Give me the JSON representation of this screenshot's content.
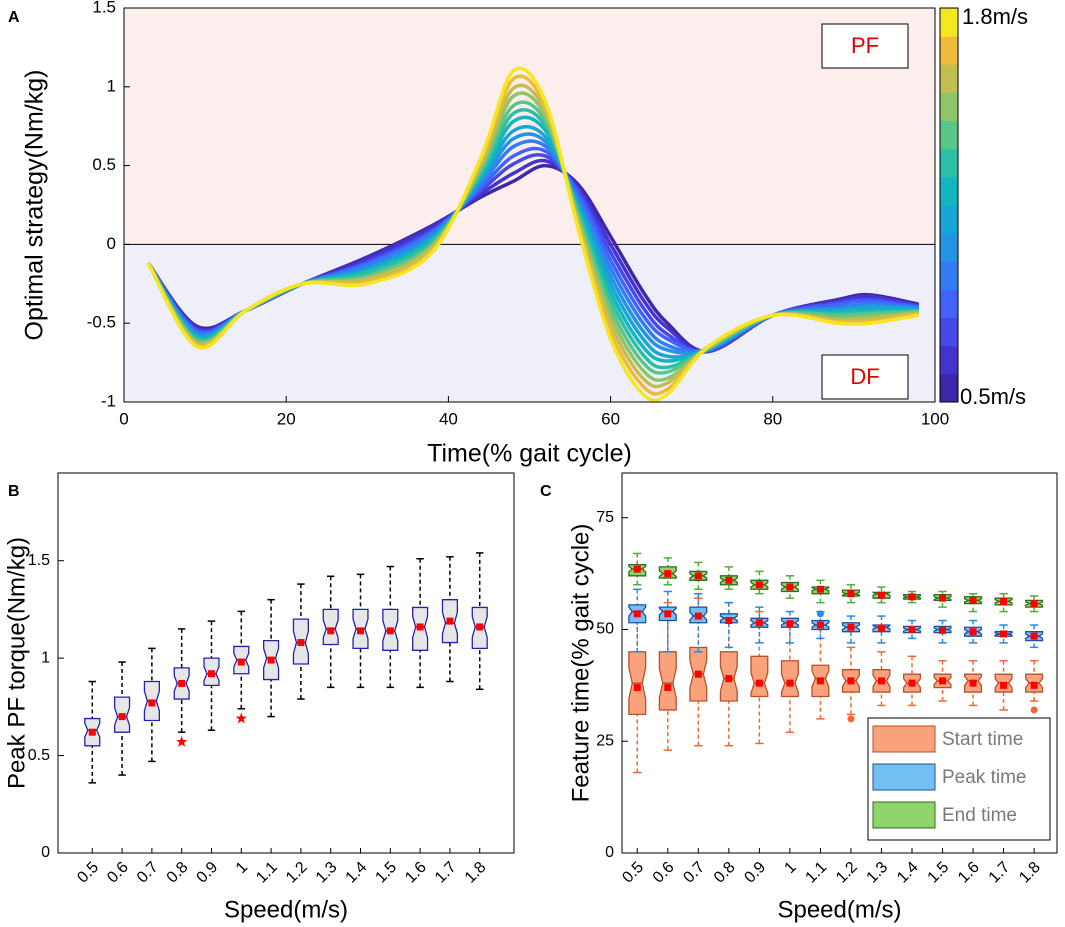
{
  "chart_data": [
    {
      "type": "line",
      "panel_label": "A",
      "xlabel": "Time(% gait cycle)",
      "ylabel": "Optimal strategy(Nm/kg)",
      "xlim": [
        0,
        100
      ],
      "xticks": [
        0,
        20,
        40,
        60,
        80,
        100
      ],
      "ylim": [
        -1,
        1.5
      ],
      "yticks": [
        -1,
        -0.5,
        0,
        0.5,
        1,
        1.5
      ],
      "annotations": [
        "PF",
        "DF"
      ],
      "colorbar_top_label": "1.8m/s",
      "colorbar_bottom_label": "0.5m/s",
      "x": [
        3,
        9,
        15,
        22,
        30,
        38,
        44,
        48,
        52,
        56,
        60,
        64,
        67,
        72,
        80,
        88,
        92,
        98
      ],
      "series": [
        {
          "color": "#3e26a8",
          "values": [
            -0.12,
            -0.52,
            -0.42,
            -0.25,
            -0.08,
            0.12,
            0.3,
            0.4,
            0.5,
            0.38,
            0.05,
            -0.3,
            -0.5,
            -0.68,
            -0.45,
            -0.35,
            -0.32,
            -0.38
          ]
        },
        {
          "color": "#4433cc",
          "values": [
            -0.12,
            -0.53,
            -0.42,
            -0.25,
            -0.09,
            0.11,
            0.32,
            0.45,
            0.53,
            0.36,
            0.0,
            -0.35,
            -0.53,
            -0.68,
            -0.45,
            -0.36,
            -0.33,
            -0.39
          ]
        },
        {
          "color": "#4748e8",
          "values": [
            -0.12,
            -0.54,
            -0.42,
            -0.25,
            -0.11,
            0.09,
            0.34,
            0.51,
            0.56,
            0.34,
            -0.05,
            -0.4,
            -0.57,
            -0.68,
            -0.45,
            -0.37,
            -0.35,
            -0.39
          ]
        },
        {
          "color": "#4362fb",
          "values": [
            -0.12,
            -0.55,
            -0.42,
            -0.25,
            -0.12,
            0.08,
            0.36,
            0.56,
            0.59,
            0.32,
            -0.1,
            -0.45,
            -0.6,
            -0.67,
            -0.45,
            -0.38,
            -0.36,
            -0.4
          ]
        },
        {
          "color": "#327cf4",
          "values": [
            -0.12,
            -0.56,
            -0.42,
            -0.25,
            -0.13,
            0.07,
            0.38,
            0.62,
            0.62,
            0.29,
            -0.15,
            -0.5,
            -0.64,
            -0.67,
            -0.45,
            -0.4,
            -0.38,
            -0.4
          ]
        },
        {
          "color": "#2393e2",
          "values": [
            -0.12,
            -0.57,
            -0.42,
            -0.25,
            -0.15,
            0.05,
            0.4,
            0.67,
            0.65,
            0.27,
            -0.2,
            -0.55,
            -0.67,
            -0.67,
            -0.45,
            -0.41,
            -0.39,
            -0.41
          ]
        },
        {
          "color": "#18a6d4",
          "values": [
            -0.12,
            -0.58,
            -0.42,
            -0.25,
            -0.16,
            0.04,
            0.42,
            0.72,
            0.68,
            0.25,
            -0.25,
            -0.6,
            -0.71,
            -0.67,
            -0.45,
            -0.42,
            -0.4,
            -0.41
          ]
        },
        {
          "color": "#12b5c0",
          "values": [
            -0.12,
            -0.59,
            -0.42,
            -0.25,
            -0.17,
            0.03,
            0.43,
            0.78,
            0.72,
            0.23,
            -0.3,
            -0.65,
            -0.74,
            -0.66,
            -0.45,
            -0.43,
            -0.42,
            -0.42
          ]
        },
        {
          "color": "#2bbfa4",
          "values": [
            -0.12,
            -0.6,
            -0.42,
            -0.25,
            -0.18,
            0.02,
            0.45,
            0.83,
            0.75,
            0.21,
            -0.35,
            -0.7,
            -0.78,
            -0.66,
            -0.45,
            -0.44,
            -0.43,
            -0.42
          ]
        },
        {
          "color": "#5ac588",
          "values": [
            -0.12,
            -0.61,
            -0.42,
            -0.25,
            -0.2,
            0.0,
            0.47,
            0.88,
            0.78,
            0.19,
            -0.4,
            -0.75,
            -0.81,
            -0.66,
            -0.45,
            -0.45,
            -0.44,
            -0.43
          ]
        },
        {
          "color": "#8ec46a",
          "values": [
            -0.12,
            -0.62,
            -0.42,
            -0.25,
            -0.21,
            -0.01,
            0.49,
            0.94,
            0.81,
            0.16,
            -0.45,
            -0.8,
            -0.85,
            -0.66,
            -0.45,
            -0.47,
            -0.46,
            -0.43
          ]
        },
        {
          "color": "#c2be4f",
          "values": [
            -0.12,
            -0.63,
            -0.42,
            -0.25,
            -0.22,
            -0.02,
            0.51,
            0.99,
            0.84,
            0.14,
            -0.5,
            -0.85,
            -0.88,
            -0.65,
            -0.45,
            -0.48,
            -0.47,
            -0.44
          ]
        },
        {
          "color": "#eeba3c",
          "values": [
            -0.12,
            -0.64,
            -0.42,
            -0.25,
            -0.24,
            -0.04,
            0.53,
            1.05,
            0.87,
            0.12,
            -0.55,
            -0.9,
            -0.92,
            -0.65,
            -0.45,
            -0.49,
            -0.49,
            -0.44
          ]
        },
        {
          "color": "#f5e622",
          "values": [
            -0.12,
            -0.65,
            -0.42,
            -0.25,
            -0.25,
            -0.05,
            0.55,
            1.1,
            0.9,
            0.1,
            -0.6,
            -0.95,
            -0.95,
            -0.65,
            -0.45,
            -0.5,
            -0.5,
            -0.45
          ]
        }
      ]
    },
    {
      "type": "box",
      "panel_label": "B",
      "xlabel": "Speed(m/s)",
      "ylabel": "Peak PF torque(Nm/kg)",
      "categories": [
        "0.5",
        "0.6",
        "0.7",
        "0.8",
        "0.9",
        "1",
        "1.1",
        "1.2",
        "1.3",
        "1.4",
        "1.5",
        "1.6",
        "1.7",
        "1.8"
      ],
      "ylim": [
        0,
        1.95
      ],
      "yticks": [
        0,
        0.5,
        1,
        1.5
      ],
      "outlier_marker": "star",
      "series": [
        {
          "color": "#e6e6e6",
          "edge_color": "#2424a8",
          "whisker_color": "#000000",
          "mean_color": "#ff0000",
          "outlier_color": "#ff0000",
          "whisker_low": [
            0.36,
            0.4,
            0.47,
            0.62,
            0.63,
            0.74,
            0.7,
            0.79,
            0.85,
            0.85,
            0.85,
            0.85,
            0.88,
            0.84
          ],
          "q1": [
            0.55,
            0.62,
            0.68,
            0.79,
            0.86,
            0.92,
            0.89,
            0.97,
            1.07,
            1.05,
            1.04,
            1.04,
            1.08,
            1.05
          ],
          "median": [
            0.63,
            0.7,
            0.78,
            0.87,
            0.92,
            0.99,
            1.0,
            1.08,
            1.15,
            1.15,
            1.14,
            1.16,
            1.18,
            1.16
          ],
          "q3": [
            0.69,
            0.8,
            0.88,
            0.95,
            1.0,
            1.06,
            1.09,
            1.2,
            1.25,
            1.25,
            1.25,
            1.26,
            1.3,
            1.26
          ],
          "whisker_high": [
            0.88,
            0.98,
            1.05,
            1.15,
            1.19,
            1.24,
            1.3,
            1.38,
            1.42,
            1.43,
            1.47,
            1.51,
            1.52,
            1.54
          ],
          "mean": [
            0.62,
            0.7,
            0.77,
            0.87,
            0.92,
            0.98,
            0.99,
            1.08,
            1.14,
            1.14,
            1.14,
            1.16,
            1.19,
            1.16
          ],
          "outliers": [
            [],
            [],
            [],
            [
              0.57
            ],
            [],
            [
              0.69
            ],
            [],
            [],
            [],
            [],
            [],
            [],
            [],
            []
          ]
        }
      ]
    },
    {
      "type": "box",
      "panel_label": "C",
      "xlabel": "Speed(m/s)",
      "ylabel": "Feature time(% gait cycle)",
      "categories": [
        "0.5",
        "0.6",
        "0.7",
        "0.8",
        "0.9",
        "1",
        "1.1",
        "1.2",
        "1.3",
        "1.4",
        "1.5",
        "1.6",
        "1.7",
        "1.8"
      ],
      "ylim": [
        0,
        85
      ],
      "yticks": [
        0,
        25,
        50,
        75
      ],
      "outlier_marker": "dot",
      "legend": "lower right",
      "series": [
        {
          "name": "Start time",
          "color": "#f9a27c",
          "edge_color": "#b5532c",
          "whisker_color": "#f06a30",
          "mean_color": "#ff0000",
          "outlier_color": "#f06a30",
          "whisker_low": [
            18,
            23,
            24,
            24,
            24.5,
            27,
            30,
            31,
            33,
            33,
            34,
            33,
            32,
            34
          ],
          "q1": [
            31,
            32,
            34,
            34,
            35,
            35,
            35,
            36,
            36,
            36,
            37,
            36,
            36,
            36
          ],
          "median": [
            38,
            38,
            40,
            39,
            38,
            38,
            39,
            38.5,
            38.5,
            38,
            38.5,
            38.5,
            38,
            38
          ],
          "q3": [
            45,
            45,
            46,
            45,
            44,
            43,
            42,
            41,
            41,
            40,
            40,
            40,
            40,
            40
          ],
          "whisker_high": [
            55,
            56,
            57,
            56,
            54,
            52,
            50,
            46,
            45,
            44,
            43,
            43,
            43,
            43
          ],
          "mean": [
            37,
            37,
            40,
            39,
            38,
            38,
            38.5,
            38.5,
            38.5,
            38,
            38.5,
            38,
            37.5,
            37.5
          ],
          "outliers": [
            [],
            [],
            [],
            [],
            [],
            [],
            [],
            [
              30
            ],
            [],
            [],
            [],
            [],
            [],
            [
              32
            ]
          ]
        },
        {
          "name": "Peak time",
          "color": "#74c0f5",
          "edge_color": "#1f4f9a",
          "whisker_color": "#2a8ae0",
          "mean_color": "#ff0000",
          "outlier_color": "#2a8ae0",
          "whisker_low": [
            45,
            45,
            45,
            46,
            47,
            47,
            48,
            47,
            47,
            48,
            47,
            47,
            47,
            46
          ],
          "q1": [
            51.5,
            52,
            51.5,
            51.5,
            50.5,
            50.5,
            50,
            49.5,
            49.5,
            49.3,
            49.3,
            48.5,
            48.5,
            47.5
          ],
          "median": [
            54,
            54,
            53,
            52.5,
            51.5,
            51.5,
            51,
            50.5,
            50.5,
            50,
            50,
            49.5,
            49,
            48.5
          ],
          "q3": [
            55.5,
            55,
            55,
            53.5,
            52.5,
            52.5,
            52,
            51.5,
            51,
            50.7,
            50.7,
            50.5,
            49.5,
            49.5
          ],
          "whisker_high": [
            59,
            58.5,
            58,
            56,
            55,
            54,
            54,
            53,
            53,
            52,
            52,
            52,
            51,
            51
          ],
          "mean": [
            53.5,
            53.5,
            53,
            52,
            51.5,
            51.3,
            51,
            50.5,
            50.3,
            50,
            49.8,
            49.5,
            49,
            48.5
          ],
          "outliers": [
            [],
            [],
            [],
            [],
            [],
            [],
            [
              53.5
            ],
            [],
            [],
            [],
            [],
            [],
            [],
            []
          ]
        },
        {
          "name": "End time",
          "color": "#8fd36a",
          "edge_color": "#2f6e1a",
          "whisker_color": "#50b030",
          "mean_color": "#ff0000",
          "outlier_color": "#50b030",
          "whisker_low": [
            60,
            60,
            59,
            59,
            58,
            57,
            56,
            56,
            56,
            56,
            55,
            54,
            54,
            54
          ],
          "q1": [
            62,
            61.5,
            61,
            60,
            59,
            58.5,
            58,
            57.5,
            57,
            56.8,
            56.5,
            55.8,
            55.5,
            55
          ],
          "median": [
            63.5,
            62.5,
            62,
            61,
            60,
            59.5,
            59,
            58,
            58,
            57.3,
            57,
            56.5,
            56.3,
            55.8
          ],
          "q3": [
            64.5,
            64,
            63,
            62,
            61,
            60.5,
            59.5,
            58.8,
            58.3,
            57.8,
            57.8,
            57.3,
            57,
            56.5
          ],
          "whisker_high": [
            67,
            66,
            65,
            64,
            63,
            62,
            61,
            60,
            59.5,
            58.5,
            58.5,
            58,
            58,
            57.5
          ],
          "mean": [
            63.5,
            62.5,
            62,
            61,
            60,
            59.5,
            59,
            58,
            57.7,
            57.3,
            57,
            56.5,
            56.3,
            55.8
          ],
          "outliers": [
            [],
            [],
            [],
            [],
            [],
            [],
            [],
            [],
            [],
            [],
            [],
            [],
            [],
            []
          ]
        }
      ]
    }
  ]
}
